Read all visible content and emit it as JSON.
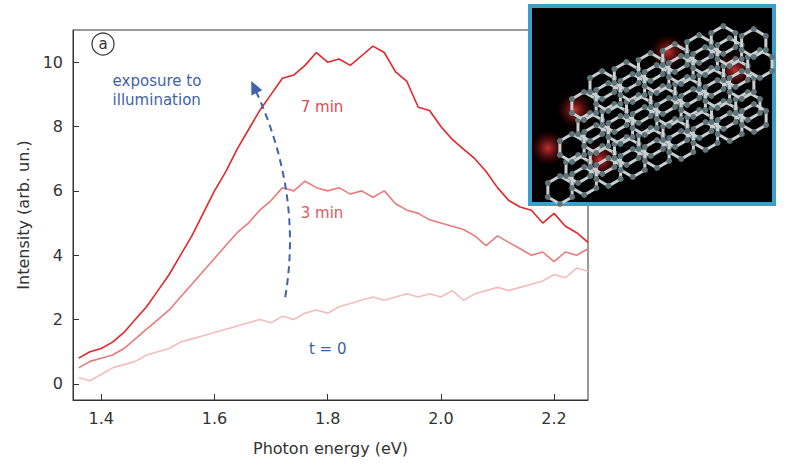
{
  "chart_data": {
    "type": "line",
    "xlabel": "Photon energy (eV)",
    "ylabel": "Intensity (arb. un.)",
    "xlim": [
      1.35,
      2.26
    ],
    "ylim": [
      -0.5,
      11
    ],
    "xticks": [
      1.4,
      1.6,
      1.8,
      {
        "value": 2,
        "label": "2.0"
      },
      2.2
    ],
    "yticks": [
      0,
      2,
      4,
      6,
      8,
      10
    ],
    "grid": false,
    "annotations": [
      "exposure to illumination"
    ],
    "panel_label": "a",
    "x": [
      1.36,
      1.38,
      1.4,
      1.42,
      1.44,
      1.46,
      1.48,
      1.5,
      1.52,
      1.54,
      1.56,
      1.58,
      1.6,
      1.62,
      1.64,
      1.66,
      1.68,
      1.7,
      1.72,
      1.74,
      1.76,
      1.78,
      1.8,
      1.82,
      1.84,
      1.86,
      1.88,
      1.9,
      1.92,
      1.94,
      1.96,
      1.98,
      2.0,
      2.02,
      2.04,
      2.06,
      2.08,
      2.1,
      2.12,
      2.14,
      2.16,
      2.18,
      2.2,
      2.22,
      2.24,
      2.26
    ],
    "series": [
      {
        "name": "7 min",
        "color": "#e3262b",
        "values": [
          0.8,
          1.0,
          1.1,
          1.3,
          1.6,
          2.0,
          2.4,
          2.9,
          3.4,
          4.0,
          4.6,
          5.3,
          6.0,
          6.6,
          7.3,
          7.9,
          8.5,
          9.0,
          9.5,
          9.6,
          9.9,
          10.3,
          10.0,
          10.1,
          9.9,
          10.2,
          10.5,
          10.3,
          9.7,
          9.4,
          8.6,
          8.5,
          8.0,
          7.6,
          7.3,
          7.0,
          6.6,
          6.1,
          5.7,
          5.5,
          5.4,
          5.0,
          5.3,
          4.9,
          4.7,
          4.4
        ]
      },
      {
        "name": "3 min",
        "color": "#ea7b7b",
        "values": [
          0.5,
          0.7,
          0.8,
          0.9,
          1.1,
          1.4,
          1.7,
          2.0,
          2.3,
          2.7,
          3.1,
          3.5,
          3.9,
          4.3,
          4.7,
          5.0,
          5.4,
          5.7,
          6.1,
          6.0,
          6.3,
          6.1,
          6.0,
          6.1,
          5.9,
          6.0,
          5.8,
          6.0,
          5.6,
          5.4,
          5.3,
          5.1,
          5.0,
          4.9,
          4.8,
          4.6,
          4.3,
          4.6,
          4.4,
          4.2,
          4.0,
          4.1,
          3.8,
          4.1,
          4.0,
          4.2
        ]
      },
      {
        "name": "t = 0",
        "color": "#f5bcbc",
        "values": [
          0.2,
          0.1,
          0.3,
          0.5,
          0.6,
          0.7,
          0.9,
          1.0,
          1.1,
          1.3,
          1.4,
          1.5,
          1.6,
          1.7,
          1.8,
          1.9,
          2.0,
          1.9,
          2.1,
          2.0,
          2.2,
          2.3,
          2.2,
          2.4,
          2.5,
          2.6,
          2.7,
          2.6,
          2.7,
          2.8,
          2.7,
          2.8,
          2.7,
          2.9,
          2.6,
          2.8,
          2.9,
          3.0,
          2.9,
          3.0,
          3.1,
          3.2,
          3.4,
          3.3,
          3.6,
          3.5
        ]
      }
    ]
  }
}
